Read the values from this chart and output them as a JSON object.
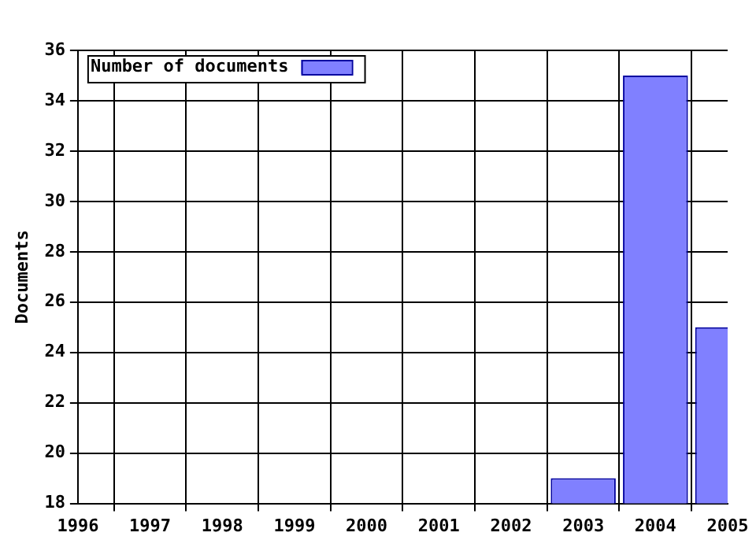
{
  "chart_data": {
    "type": "bar",
    "ylabel": "Documents",
    "x": [
      2003,
      2004,
      2005
    ],
    "series": [
      {
        "name": "Number of documents",
        "color": "#8080ff",
        "values": [
          19,
          35,
          25
        ]
      }
    ],
    "xlim": [
      1996,
      2005
    ],
    "xticks": [
      1996,
      1997,
      1998,
      1999,
      2000,
      2001,
      2002,
      2003,
      2004,
      2005
    ],
    "ylim": [
      18,
      36
    ],
    "yticks": [
      18,
      20,
      22,
      24,
      26,
      28,
      30,
      32,
      34,
      36
    ],
    "grid": true,
    "legend": "top left"
  }
}
